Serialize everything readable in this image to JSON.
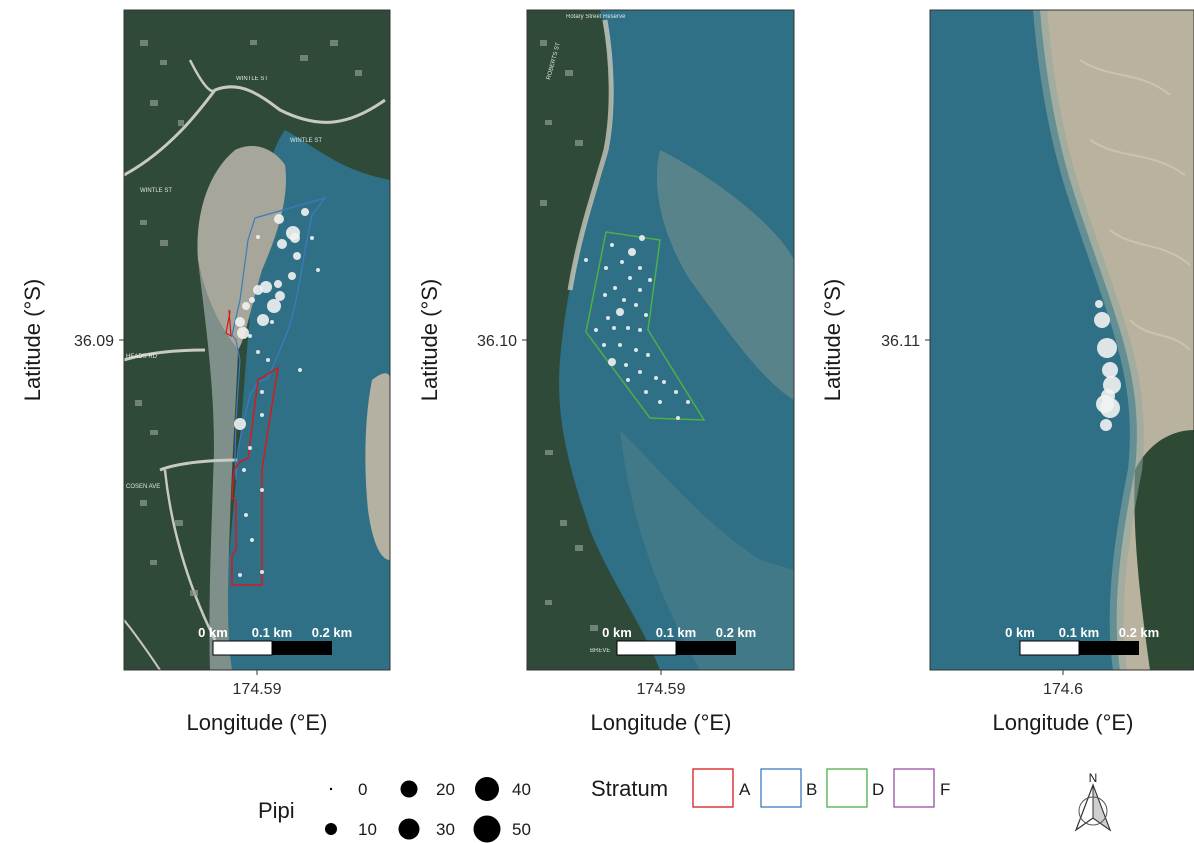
{
  "panels": [
    {
      "id": "p1",
      "x_tick_label": "174.59",
      "y_tick_label": "36.09",
      "x_axis_title": "Longitude (°E)",
      "y_axis_title": "Latitude (°S)",
      "scale_bar": {
        "label_0": "0 km",
        "label_1": "0.1 km",
        "label_2": "0.2 km"
      },
      "street_labels": [
        "WINTLE ST",
        "WINTLE ST",
        "WINTLE ST",
        "HEADS RD",
        "COSEN AVE"
      ]
    },
    {
      "id": "p2",
      "x_tick_label": "174.59",
      "y_tick_label": "36.10",
      "x_axis_title": "Longitude (°E)",
      "y_axis_title": "Latitude (°S)",
      "scale_bar": {
        "label_0": "0 km",
        "label_1": "0.1 km",
        "label_2": "0.2 km"
      },
      "street_labels": [
        "Rotary Street Reserve",
        "ROBERTS ST",
        "BREVE"
      ]
    },
    {
      "id": "p3",
      "x_tick_label": "174.6",
      "y_tick_label": "36.11",
      "x_axis_title": "Longitude (°E)",
      "y_axis_title": "Latitude (°S)",
      "scale_bar": {
        "label_0": "0 km",
        "label_1": "0.1 km",
        "label_2": "0.2 km"
      },
      "street_labels": []
    }
  ],
  "legend": {
    "size": {
      "title": "Pipi",
      "entries": [
        {
          "label": "0",
          "value": 0
        },
        {
          "label": "10",
          "value": 10
        },
        {
          "label": "20",
          "value": 20
        },
        {
          "label": "30",
          "value": 30
        },
        {
          "label": "40",
          "value": 40
        },
        {
          "label": "50",
          "value": 50
        }
      ]
    },
    "stratum": {
      "title": "Stratum",
      "entries": [
        {
          "label": "A",
          "color": "#d7191c"
        },
        {
          "label": "B",
          "color": "#3b7bc0"
        },
        {
          "label": "D",
          "color": "#4daf4a"
        },
        {
          "label": "F",
          "color": "#984ea3"
        }
      ]
    }
  },
  "north_arrow": {
    "label": "N",
    "icon": "north-arrow-icon"
  },
  "colors": {
    "water": "#2e6f85",
    "sand": "#b9b29e",
    "vegetation": "#2e4a35",
    "points": "#f2f2f2",
    "stratum_A": "#d7191c",
    "stratum_B": "#3b7bc0",
    "stratum_D": "#4daf4a",
    "stratum_F": "#984ea3"
  }
}
